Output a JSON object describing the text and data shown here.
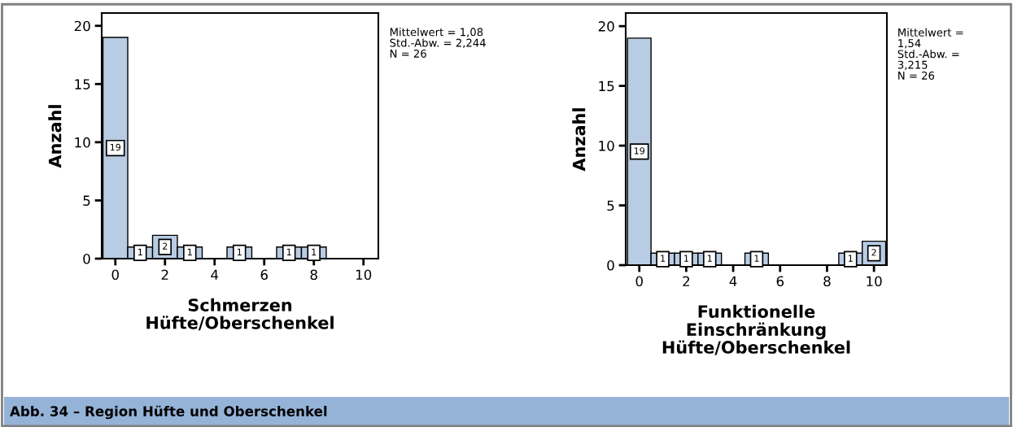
{
  "chart_data": [
    {
      "type": "histogram",
      "xlabel": "Schmerzen\nHüfte/Oberschenkel",
      "ylabel": "Anzahl",
      "bins": [
        -0.5,
        0.5,
        1.5,
        2.5,
        3.5,
        4.5,
        5.5,
        6.5,
        7.5,
        8.5,
        9.5,
        10.5
      ],
      "values": [
        19,
        1,
        2,
        1,
        0,
        1,
        0,
        1,
        1,
        0,
        0
      ],
      "value_labels": [
        "19",
        "1",
        "2",
        "1",
        null,
        "1",
        null,
        "1",
        "1",
        null,
        null
      ],
      "color": "#b8cce4",
      "xlim": [
        -0.55,
        10.6
      ],
      "xticks": [
        0,
        2,
        4,
        6,
        8,
        10
      ],
      "ylim": [
        0,
        21.1
      ],
      "yticks": [
        0,
        5,
        10,
        15,
        20
      ],
      "grid": false,
      "annotations": [
        "Mittelwert = 1,08\nStd.-Abw. = 2,244\nN = 26",
        "Abb. 34 – Region Hüfte und Oberschenkel"
      ]
    },
    {
      "type": "histogram",
      "xlabel": "Funktionelle\nEinschränkung\nHüfte/Oberschenkel",
      "ylabel": "Anzahl",
      "bins": [
        -0.5,
        0.5,
        1.5,
        2.5,
        3.5,
        4.5,
        5.5,
        6.5,
        7.5,
        8.5,
        9.5,
        10.5
      ],
      "values": [
        19,
        1,
        1,
        1,
        0,
        1,
        0,
        0,
        0,
        1,
        2
      ],
      "value_labels": [
        "19",
        "1",
        "1",
        "1",
        null,
        "1",
        null,
        null,
        null,
        "1",
        "2"
      ],
      "color": "#b8cce4",
      "xlim": [
        -0.58,
        10.55
      ],
      "xticks": [
        0,
        2,
        4,
        6,
        8,
        10
      ],
      "ylim": [
        0,
        21.1
      ],
      "yticks": [
        0,
        5,
        10,
        15,
        20
      ],
      "grid": false,
      "annotations": [
        "Mittelwert =\n1,54\nStd.-Abw. =\n3,215\nN = 26"
      ]
    }
  ]
}
